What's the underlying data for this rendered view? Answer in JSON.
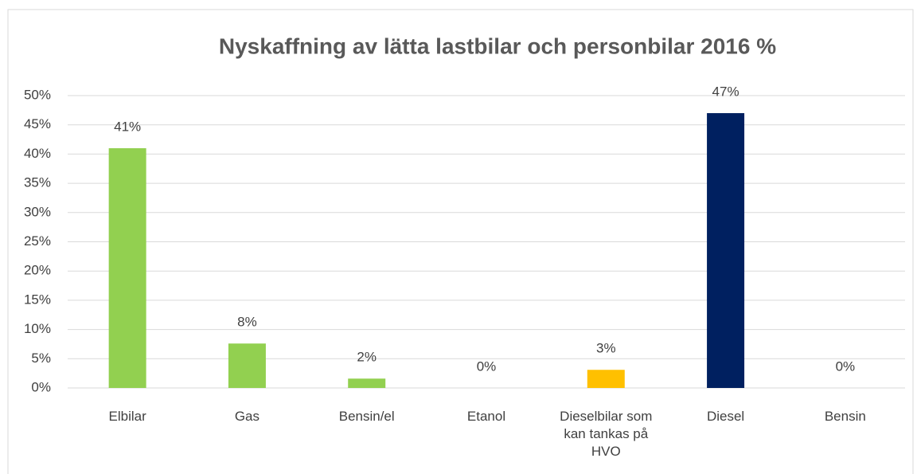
{
  "chart_data": {
    "type": "bar",
    "title": "Nyskaffning av lätta lastbilar och personbilar 2016 %",
    "categories": [
      "Elbilar",
      "Gas",
      "Bensin/el",
      "Etanol",
      "Dieselbilar som kan tankas på HVO",
      "Diesel",
      "Bensin"
    ],
    "values": [
      41,
      7.6,
      1.6,
      0,
      3.1,
      47,
      0
    ],
    "value_labels": [
      "41%",
      "8%",
      "2%",
      "0%",
      "3%",
      "47%",
      "0%"
    ],
    "colors": [
      "#92d050",
      "#92d050",
      "#92d050",
      "#92d050",
      "#ffc000",
      "#002060",
      "#92d050"
    ],
    "ylim": [
      0,
      50
    ],
    "yticks": [
      {
        "value": 0,
        "label": "0%"
      },
      {
        "value": 5,
        "label": "5%"
      },
      {
        "value": 10,
        "label": "10%"
      },
      {
        "value": 15,
        "label": "15%"
      },
      {
        "value": 20,
        "label": "20%"
      },
      {
        "value": 25,
        "label": "25%"
      },
      {
        "value": 30,
        "label": "30%"
      },
      {
        "value": 35,
        "label": "35%"
      },
      {
        "value": 40,
        "label": "40%"
      },
      {
        "value": 45,
        "label": "45%"
      },
      {
        "value": 50,
        "label": "50%"
      }
    ],
    "grid": true
  }
}
